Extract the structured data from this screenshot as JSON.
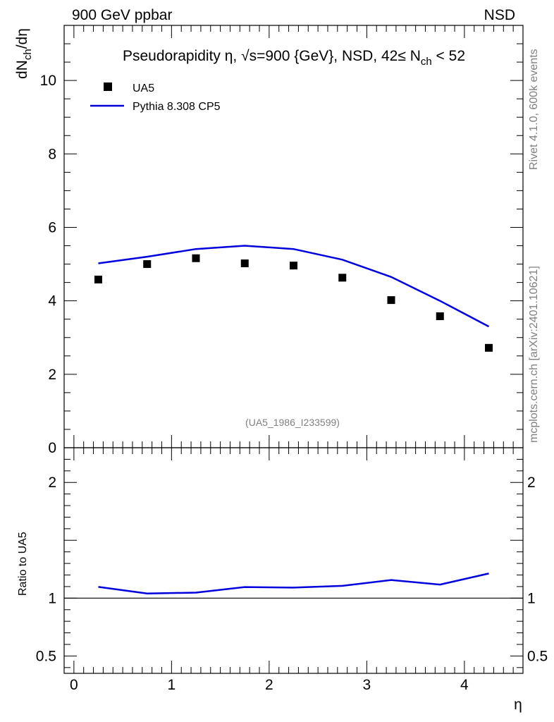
{
  "header": {
    "left": "900 GeV ppbar",
    "right": "NSD"
  },
  "side_text": {
    "rivet": "Rivet 4.1.0,  600k events",
    "mcplots": "mcplots.cern.ch [arXiv:2401.10621]"
  },
  "chart_data": [
    {
      "type": "scatter",
      "title": "Pseudorapidity η, √s=900 {GeV}, NSD, 42≤ N",
      "title_sub": "ch",
      "title_tail": " < 52",
      "ylabel": "dN",
      "ylabel_sub": "ch",
      "ylabel_tail": "/dη",
      "ylim": [
        0,
        11.5
      ],
      "yticks": [
        "0",
        "2",
        "4",
        "6",
        "8",
        "10"
      ],
      "ytick_values": [
        0,
        2,
        4,
        6,
        8,
        10
      ],
      "xlim": [
        -0.1,
        4.6
      ],
      "watermark": "(UA5_1986_I233599)",
      "legend_placement": "top-left",
      "series": [
        {
          "name": "UA5",
          "style": "markers",
          "color": "#000000",
          "x": [
            0.25,
            0.75,
            1.25,
            1.75,
            2.25,
            2.75,
            3.25,
            3.75,
            4.25
          ],
          "y": [
            4.58,
            5.0,
            5.16,
            5.02,
            4.96,
            4.63,
            4.02,
            3.58,
            2.72
          ]
        },
        {
          "name": "Pythia 8.308 CP5",
          "style": "line",
          "color": "#0000dd",
          "x": [
            0.25,
            0.75,
            1.25,
            1.75,
            2.25,
            2.75,
            3.25,
            3.75,
            4.25
          ],
          "y": [
            5.02,
            5.2,
            5.41,
            5.5,
            5.41,
            5.12,
            4.65,
            4.0,
            3.3
          ]
        }
      ]
    },
    {
      "type": "line",
      "ylabel": "Ratio to UA5",
      "xlabel": "η",
      "ylim": [
        0.35,
        2.3
      ],
      "xlim": [
        -0.1,
        4.6
      ],
      "yticks": [
        "0.5",
        "1",
        "2"
      ],
      "ytick_values": [
        0.5,
        1,
        2
      ],
      "xticks": [
        "0",
        "1",
        "2",
        "3",
        "4"
      ],
      "xtick_values": [
        0,
        1,
        2,
        3,
        4
      ],
      "reference_line": 1,
      "series": [
        {
          "name": "Pythia 8.308 CP5",
          "color": "#0000dd",
          "x": [
            0.25,
            0.75,
            1.25,
            1.75,
            2.25,
            2.75,
            3.25,
            3.75,
            4.25
          ],
          "y": [
            1.097,
            1.04,
            1.048,
            1.096,
            1.091,
            1.106,
            1.157,
            1.117,
            1.213
          ]
        }
      ]
    }
  ]
}
